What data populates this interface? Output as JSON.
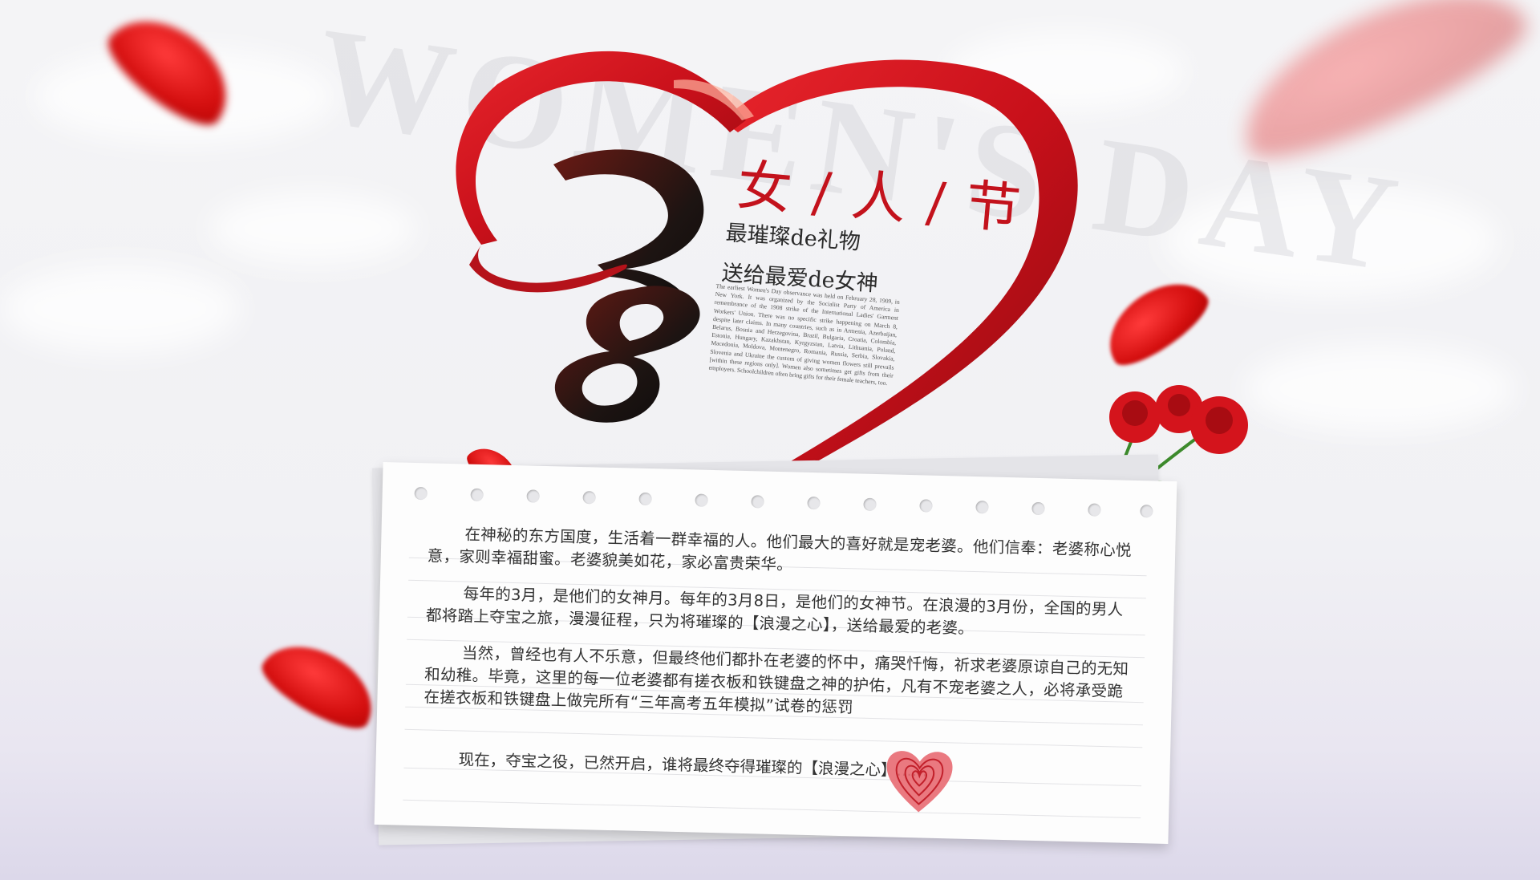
{
  "title": {
    "main": "女/人/节",
    "sub1": "最璀璨de礼物",
    "sub2": "送给最爱de女神"
  },
  "watermark": "WOMEN'S DAY",
  "english_text": "The earliest Women's Day observance was held on February 28, 1909, in New York. It was organized by the Socialist Party of America in remembrance of the 1908 strike of the International Ladies' Garment Workers' Union. There was no specific strike happening on March 8, despite later claims. In many countries, such as in Armenia, Azerbaijan, Belarus, Bosnia and Herzegovina, Brazil, Bulgaria, Croatia, Colombia, Estonia, Hungary, Kazakhstan, Kyrgyzstan, Latvia, Lithuania, Poland, Macedonia, Moldova, Montenegro, Romania, Russia, Serbia, Slovakia, Slovenia and Ukraine the custom of giving women flowers still prevails [within these regions only]. Women also sometimes get gifts from their employers. Schoolchildren often bring gifts for their female teachers, too.",
  "note": {
    "paragraphs": [
      "在神秘的东方国度，生活着一群幸福的人。他们最大的喜好就是宠老婆。他们信奉：老婆称心悦意，家则幸福甜蜜。老婆貌美如花，家必富贵荣华。",
      "每年的3月，是他们的女神月。每年的3月8日，是他们的女神节。在浪漫的3月份，全国的男人都将踏上夺宝之旅，漫漫征程，只为将璀璨的【浪漫之心】，送给最爱的老婆。",
      "当然，曾经也有人不乐意，但最终他们都扑在老婆的怀中，痛哭忏悔，祈求老婆原谅自己的无知和幼稚。毕竟，这里的每一位老婆都有搓衣板和铁键盘之神的护佑，凡有不宠老婆之人，必将承受跪在搓衣板和铁键盘上做完所有“三年高考五年模拟”试卷的惩罚"
    ],
    "closing": "现在，夺宝之役，已然开启，谁将最终夺得璀璨的【浪漫之心】……"
  },
  "colors": {
    "ribbon_red": "#c8101a",
    "title_red": "#c3121c",
    "rose_red": "#d4141c",
    "leaf_green": "#3d8a2c"
  }
}
